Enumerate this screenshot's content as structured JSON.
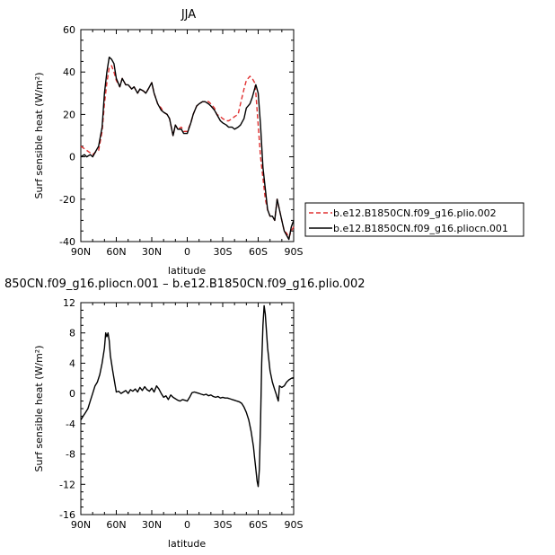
{
  "chart_data": [
    {
      "type": "line",
      "title": "JJA",
      "xlabel": "latitude",
      "ylabel": "Surf sensible heat (W/m²)",
      "xlim": [
        90,
        -90
      ],
      "ylim": [
        -40,
        60
      ],
      "x_ticks": [
        {
          "value": 90,
          "label": "90N"
        },
        {
          "value": 60,
          "label": "60N"
        },
        {
          "value": 30,
          "label": "30N"
        },
        {
          "value": 0,
          "label": "0"
        },
        {
          "value": -30,
          "label": "30S"
        },
        {
          "value": -60,
          "label": "60S"
        },
        {
          "value": -90,
          "label": "90S"
        }
      ],
      "y_ticks": [
        -40,
        -20,
        0,
        20,
        40,
        60
      ],
      "legend": "right",
      "series": [
        {
          "name": "b.e12.B1850CN.f09_g16.plio.002",
          "color": "#e03030",
          "dash": true,
          "x": [
            90,
            85,
            80,
            78,
            75,
            72,
            70,
            68,
            66,
            64,
            62,
            60,
            57,
            55,
            52,
            50,
            47,
            45,
            42,
            40,
            37,
            35,
            33,
            30,
            28,
            25,
            22,
            20,
            17,
            15,
            12,
            10,
            8,
            5,
            3,
            0,
            -3,
            -5,
            -8,
            -10,
            -13,
            -15,
            -18,
            -20,
            -23,
            -25,
            -28,
            -30,
            -33,
            -35,
            -38,
            -40,
            -43,
            -45,
            -48,
            -50,
            -53,
            -55,
            -57,
            -58,
            -60,
            -62,
            -64,
            -66,
            -68,
            -70,
            -72,
            -74,
            -76,
            -78,
            -80,
            -82,
            -84,
            -86,
            -88,
            -90
          ],
          "y": [
            5,
            3,
            1,
            2,
            3,
            12,
            25,
            35,
            42,
            43,
            40,
            36,
            33,
            37,
            34,
            34,
            32,
            33,
            30,
            32,
            31,
            30,
            32,
            35,
            30,
            25,
            23,
            21,
            20,
            18,
            10,
            15,
            13,
            14,
            12,
            12,
            16,
            20,
            24,
            25,
            26,
            26,
            26,
            25,
            23,
            20,
            19,
            18,
            17,
            17,
            18,
            19,
            20,
            25,
            32,
            36,
            38,
            37,
            35,
            30,
            15,
            0,
            -10,
            -20,
            -25,
            -28,
            -28,
            -30,
            -20,
            -25,
            -30,
            -35,
            -36,
            -38,
            -35,
            -33
          ]
        },
        {
          "name": "b.e12.B1850CN.f09_g16.pliocn.001",
          "color": "#000000",
          "dash": false,
          "x": [
            90,
            87,
            85,
            82,
            80,
            78,
            75,
            72,
            70,
            68,
            66,
            64,
            62,
            60,
            57,
            55,
            52,
            50,
            47,
            45,
            42,
            40,
            37,
            35,
            33,
            30,
            28,
            25,
            22,
            20,
            17,
            15,
            12,
            10,
            8,
            5,
            3,
            0,
            -3,
            -5,
            -8,
            -10,
            -13,
            -15,
            -18,
            -20,
            -23,
            -25,
            -28,
            -30,
            -33,
            -35,
            -38,
            -40,
            -43,
            -45,
            -48,
            -50,
            -53,
            -55,
            -57,
            -58,
            -60,
            -62,
            -64,
            -66,
            -68,
            -70,
            -72,
            -74,
            -76,
            -78,
            -80,
            -82,
            -84,
            -86,
            -88,
            -90
          ],
          "y": [
            0,
            1,
            0,
            1,
            0,
            2,
            5,
            14,
            30,
            40,
            47,
            46,
            44,
            37,
            33,
            37,
            34,
            34,
            32,
            33,
            30,
            32,
            31,
            30,
            32,
            35,
            30,
            25,
            22,
            21,
            20,
            18,
            10,
            15,
            13,
            13,
            11,
            11,
            16,
            20,
            24,
            25,
            26,
            26,
            25,
            24,
            22,
            20,
            17,
            16,
            15,
            14,
            14,
            13,
            14,
            15,
            18,
            23,
            25,
            28,
            32,
            34,
            30,
            15,
            -5,
            -15,
            -25,
            -28,
            -28,
            -30,
            -20,
            -25,
            -30,
            -35,
            -37,
            -39,
            -33,
            -30
          ]
        }
      ]
    },
    {
      "type": "line",
      "title": "850CN.f09_g16.pliocn.001 – b.e12.B1850CN.f09_g16.plio.002",
      "xlabel": "latitude",
      "ylabel": "Surf sensible heat (W/m²)",
      "xlim": [
        90,
        -90
      ],
      "ylim": [
        -16,
        12
      ],
      "x_ticks": [
        {
          "value": 90,
          "label": "90N"
        },
        {
          "value": 60,
          "label": "60N"
        },
        {
          "value": 30,
          "label": "30N"
        },
        {
          "value": 0,
          "label": "0"
        },
        {
          "value": -30,
          "label": "30S"
        },
        {
          "value": -60,
          "label": "60S"
        },
        {
          "value": -90,
          "label": "90S"
        }
      ],
      "y_ticks": [
        -16,
        -12,
        -8,
        -4,
        0,
        4,
        8,
        12
      ],
      "series": [
        {
          "color": "#000000",
          "dash": false,
          "x": [
            90,
            88,
            86,
            84,
            82,
            80,
            78,
            76,
            74,
            72,
            70,
            69,
            68,
            67,
            66,
            65,
            64,
            63,
            62,
            60,
            58,
            56,
            54,
            52,
            50,
            48,
            46,
            44,
            42,
            40,
            38,
            36,
            34,
            32,
            30,
            28,
            26,
            24,
            22,
            20,
            18,
            16,
            14,
            12,
            10,
            8,
            6,
            4,
            2,
            0,
            -2,
            -4,
            -6,
            -8,
            -10,
            -12,
            -14,
            -16,
            -18,
            -20,
            -22,
            -24,
            -26,
            -28,
            -30,
            -32,
            -34,
            -36,
            -38,
            -40,
            -42,
            -44,
            -46,
            -48,
            -50,
            -52,
            -54,
            -56,
            -57,
            -58,
            -59,
            -60,
            -61,
            -62,
            -63,
            -64,
            -65,
            -66,
            -68,
            -70,
            -72,
            -74,
            -75,
            -76,
            -77,
            -78,
            -80,
            -82,
            -84,
            -86,
            -88,
            -90
          ],
          "y": [
            -3.5,
            -3.0,
            -2.5,
            -2.0,
            -1.0,
            0.0,
            1.0,
            1.5,
            2.5,
            4.0,
            6.0,
            8.0,
            7.5,
            8.0,
            7.0,
            5.0,
            4.0,
            3.0,
            2.0,
            0.2,
            0.3,
            0.0,
            0.2,
            0.4,
            0.0,
            0.5,
            0.3,
            0.6,
            0.2,
            0.8,
            0.4,
            0.9,
            0.5,
            0.3,
            0.7,
            0.2,
            1.0,
            0.6,
            0.0,
            -0.5,
            -0.3,
            -0.8,
            -0.2,
            -0.5,
            -0.7,
            -0.9,
            -1.0,
            -0.8,
            -0.9,
            -1.0,
            -0.5,
            0.1,
            0.2,
            0.1,
            0.0,
            -0.1,
            -0.2,
            -0.1,
            -0.3,
            -0.2,
            -0.4,
            -0.5,
            -0.4,
            -0.6,
            -0.5,
            -0.6,
            -0.6,
            -0.7,
            -0.8,
            -0.9,
            -1.0,
            -1.1,
            -1.3,
            -1.8,
            -2.5,
            -3.5,
            -5.0,
            -7.0,
            -8.5,
            -10.0,
            -11.5,
            -12.3,
            -10.0,
            -4.0,
            4.0,
            9.0,
            11.6,
            10.5,
            6.0,
            3.0,
            1.5,
            0.5,
            0.0,
            -0.5,
            -1.0,
            1.0,
            0.8,
            1.0,
            1.5,
            1.8,
            2.0,
            2.1
          ]
        }
      ]
    }
  ]
}
